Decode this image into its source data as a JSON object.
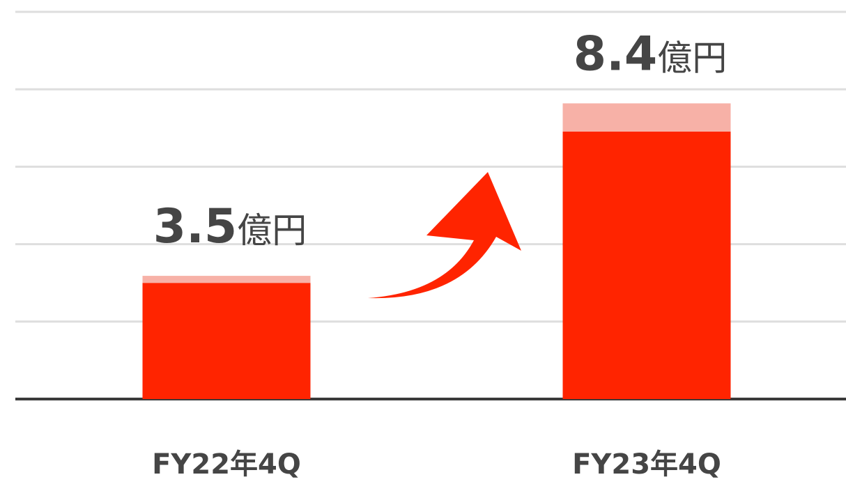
{
  "chart_data": {
    "type": "stacked_bar",
    "categories": [
      "FY22年4Q",
      "FY23年4Q"
    ],
    "series": [
      {
        "color": "#ff2400",
        "values": [
          3.3,
          7.6
        ]
      },
      {
        "color": "#f7b1a7",
        "values": [
          0.2,
          0.8
        ]
      }
    ],
    "totals": [
      3.5,
      8.4
    ],
    "unit": "億円",
    "ylim": [
      0,
      11
    ],
    "yticks": [
      0,
      2.2,
      4.4,
      6.6,
      8.8,
      11
    ],
    "grid": true
  }
}
